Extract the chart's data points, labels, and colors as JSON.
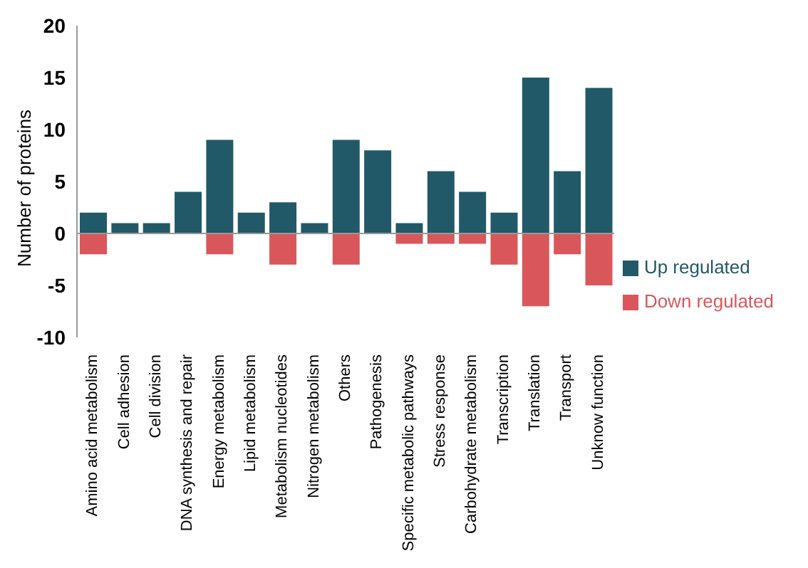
{
  "chart_data": {
    "type": "bar",
    "stacked": true,
    "ylabel": "Number of proteins",
    "categories": [
      "Amino acid metabolism",
      "Cell adhesion",
      "Cell division",
      "DNA synthesis and repair",
      "Energy metabolism",
      "Lipid metabolism",
      "Metabolism nucleotides",
      "Nitrogen metabolism",
      "Others",
      "Pathogenesis",
      "Specific metabolic pathways",
      "Stress response",
      "Carbohydrate metabolism",
      "Transcription",
      "Translation",
      "Transport",
      "Unknow function"
    ],
    "series": [
      {
        "name": "Up regulated",
        "color": "#215968",
        "values": [
          2,
          1,
          1,
          4,
          9,
          2,
          3,
          1,
          9,
          8,
          1,
          6,
          4,
          2,
          15,
          6,
          14
        ]
      },
      {
        "name": "Down regulated",
        "color": "#d9575a",
        "values": [
          -2,
          0,
          0,
          0,
          -2,
          0,
          -3,
          0,
          -3,
          0,
          -1,
          -1,
          -1,
          -3,
          -7,
          -2,
          -5
        ]
      }
    ],
    "ylim": [
      -10,
      20
    ],
    "yticks": [
      -10,
      -5,
      0,
      5,
      10,
      15,
      20
    ],
    "grid": false,
    "legend": "right",
    "ref_lines": [
      {
        "axis": "y",
        "value": 0,
        "color": "#999999"
      }
    ]
  }
}
